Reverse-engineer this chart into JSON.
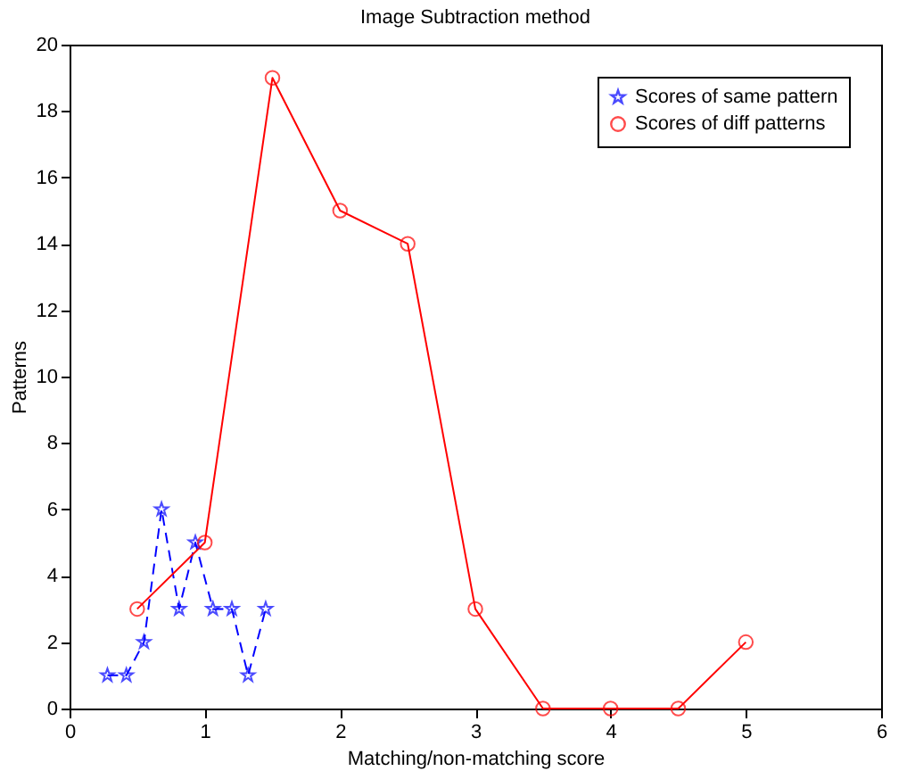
{
  "chart_data": {
    "type": "line",
    "title": "Image Subtraction method",
    "xlabel": "Matching/non-matching score",
    "ylabel": "Patterns",
    "xlim": [
      0,
      6
    ],
    "xticks": [
      0,
      1,
      2,
      3,
      4,
      5,
      6
    ],
    "ylim": [
      0,
      20
    ],
    "yticks": [
      0,
      2,
      4,
      6,
      8,
      10,
      12,
      14,
      16,
      18,
      20
    ],
    "grid": false,
    "legend": "top right",
    "series": [
      {
        "name": "Scores of same pattern",
        "color": "#0000ff",
        "marker": "star",
        "line_style": "dashed",
        "x": [
          0.28,
          0.42,
          0.55,
          0.68,
          0.81,
          0.93,
          1.06,
          1.2,
          1.32,
          1.45
        ],
        "values": [
          1,
          1,
          2,
          6,
          3,
          5,
          3,
          3,
          1,
          3
        ]
      },
      {
        "name": "Scores of diff patterns",
        "color": "#ff0000",
        "marker": "circle",
        "line_style": "solid",
        "x": [
          0.5,
          1,
          1.5,
          2,
          2.5,
          3,
          3.5,
          4,
          4.5,
          5
        ],
        "values": [
          3,
          5,
          19,
          15,
          14,
          3,
          0,
          0,
          0,
          2
        ]
      }
    ]
  }
}
